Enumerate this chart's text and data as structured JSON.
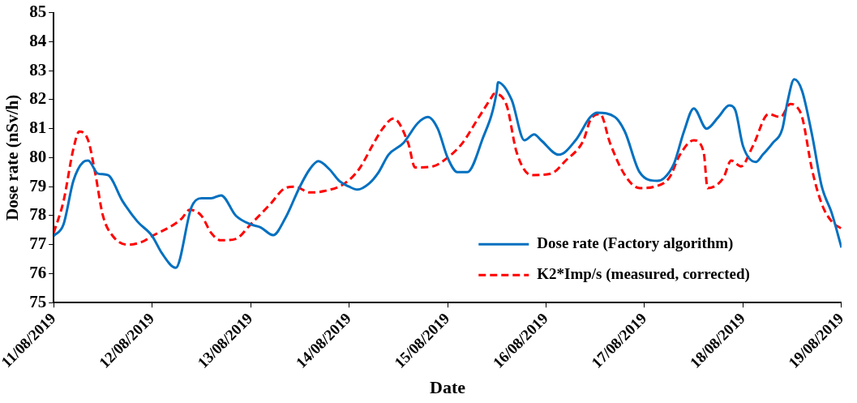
{
  "chart_data": {
    "type": "line",
    "xlabel": "Date",
    "ylabel": "Dose rate (nSv/h)",
    "xlim": [
      "2019-08-11",
      "2019-08-19"
    ],
    "xticks": [
      {
        "value": "2019-08-11",
        "label": "11/08/2019"
      },
      {
        "value": "2019-08-12",
        "label": "12/08/2019"
      },
      {
        "value": "2019-08-13",
        "label": "13/08/2019"
      },
      {
        "value": "2019-08-14",
        "label": "14/08/2019"
      },
      {
        "value": "2019-08-15",
        "label": "15/08/2019"
      },
      {
        "value": "2019-08-16",
        "label": "16/08/2019"
      },
      {
        "value": "2019-08-17",
        "label": "17/08/2019"
      },
      {
        "value": "2019-08-18",
        "label": "18/08/2019"
      },
      {
        "value": "2019-08-19",
        "label": "19/08/2019"
      }
    ],
    "ylim": [
      75,
      85
    ],
    "yticks": [
      75,
      76,
      77,
      78,
      79,
      80,
      81,
      82,
      83,
      84,
      85
    ],
    "grid": false,
    "legend": "bottom right",
    "marker": "none",
    "series": [
      {
        "name": "Dose rate (Factory algorithm)",
        "color": "#0070c0",
        "line_style": "solid",
        "x": [
          "2019-08-11T00:00",
          "2019-08-11T02:24",
          "2019-08-11T04:48",
          "2019-08-11T07:12",
          "2019-08-11T08:24",
          "2019-08-11T10:48",
          "2019-08-11T13:12",
          "2019-08-11T16:48",
          "2019-08-11T20:24",
          "2019-08-12T00:00",
          "2019-08-12T02:24",
          "2019-08-12T05:45",
          "2019-08-12T09:36",
          "2019-08-12T12:00",
          "2019-08-12T14:24",
          "2019-08-12T16:48",
          "2019-08-12T20:24",
          "2019-08-13T00:00",
          "2019-08-13T02:24",
          "2019-08-13T05:30",
          "2019-08-13T08:24",
          "2019-08-13T12:00",
          "2019-08-13T14:24",
          "2019-08-13T16:30",
          "2019-08-13T19:12",
          "2019-08-13T21:36",
          "2019-08-14T00:00",
          "2019-08-14T02:00",
          "2019-08-14T04:48",
          "2019-08-14T07:12",
          "2019-08-14T09:36",
          "2019-08-14T13:12",
          "2019-08-14T16:48",
          "2019-08-14T19:12",
          "2019-08-14T21:36",
          "2019-08-15T00:00",
          "2019-08-15T02:24",
          "2019-08-15T04:48",
          "2019-08-15T08:24",
          "2019-08-15T12:00",
          "2019-08-15T12:15",
          "2019-08-15T15:36",
          "2019-08-15T18:43",
          "2019-08-15T21:07",
          "2019-08-15T22:48",
          "2019-08-16T03:07",
          "2019-08-16T07:12",
          "2019-08-16T10:48",
          "2019-08-16T12:29",
          "2019-08-16T16:48",
          "2019-08-16T19:12",
          "2019-08-16T22:48",
          "2019-08-17T03:07",
          "2019-08-17T04:48",
          "2019-08-17T07:12",
          "2019-08-17T09:36",
          "2019-08-17T12:00",
          "2019-08-17T15:07",
          "2019-08-17T18:00",
          "2019-08-17T20:38",
          "2019-08-17T22:05",
          "2019-08-18T00:00",
          "2019-08-18T03:07",
          "2019-08-18T04:48",
          "2019-08-18T07:12",
          "2019-08-18T09:36",
          "2019-08-18T10:48",
          "2019-08-18T12:29",
          "2019-08-18T14:24",
          "2019-08-18T16:48",
          "2019-08-18T19:12",
          "2019-08-18T21:36",
          "2019-08-19T00:00"
        ],
        "values": [
          77.3,
          77.7,
          79.2,
          79.85,
          79.9,
          79.45,
          79.4,
          78.5,
          77.8,
          77.3,
          76.7,
          76.2,
          78.3,
          78.6,
          78.6,
          78.7,
          78.0,
          77.7,
          77.6,
          77.33,
          77.9,
          79.0,
          79.6,
          79.88,
          79.6,
          79.2,
          79.0,
          78.9,
          79.1,
          79.5,
          80.1,
          80.5,
          81.2,
          81.4,
          81.0,
          80.0,
          79.5,
          79.5,
          80.6,
          82.3,
          82.6,
          82.0,
          80.6,
          80.8,
          80.6,
          80.1,
          80.6,
          81.4,
          81.55,
          81.4,
          80.9,
          79.5,
          79.2,
          79.3,
          79.8,
          80.9,
          81.7,
          81.0,
          81.4,
          81.8,
          81.65,
          80.4,
          79.85,
          80.1,
          80.5,
          81.0,
          81.9,
          82.7,
          82.3,
          80.8,
          79.0,
          78.1,
          76.9
        ]
      },
      {
        "name": "K2*Imp/s (measured, corrected)",
        "color": "#ff0000",
        "line_style": "dashed",
        "x": [
          "2019-08-11T00:00",
          "2019-08-11T02:24",
          "2019-08-11T04:48",
          "2019-08-11T06:14",
          "2019-08-11T08:24",
          "2019-08-11T10:05",
          "2019-08-11T12:00",
          "2019-08-11T14:24",
          "2019-08-11T18:00",
          "2019-08-11T21:36",
          "2019-08-12T00:00",
          "2019-08-12T04:48",
          "2019-08-12T07:12",
          "2019-08-12T09:07",
          "2019-08-12T12:00",
          "2019-08-12T14:24",
          "2019-08-12T16:48",
          "2019-08-12T20:24",
          "2019-08-13T00:00",
          "2019-08-13T04:48",
          "2019-08-13T08:24",
          "2019-08-13T10:48",
          "2019-08-13T14:24",
          "2019-08-13T18:00",
          "2019-08-13T22:48",
          "2019-08-14T02:24",
          "2019-08-14T06:00",
          "2019-08-14T08:10",
          "2019-08-14T10:48",
          "2019-08-14T14:24",
          "2019-08-14T16:05",
          "2019-08-14T20:24",
          "2019-08-15T00:00",
          "2019-08-15T03:36",
          "2019-08-15T07:12",
          "2019-08-15T10:48",
          "2019-08-15T11:17",
          "2019-08-15T14:24",
          "2019-08-15T16:48",
          "2019-08-15T20:24",
          "2019-08-16T01:12",
          "2019-08-16T04:48",
          "2019-08-16T09:07",
          "2019-08-16T10:48",
          "2019-08-16T13:12",
          "2019-08-16T15:36",
          "2019-08-16T19:12",
          "2019-08-16T22:48",
          "2019-08-17T02:24",
          "2019-08-17T06:00",
          "2019-08-17T08:38",
          "2019-08-17T12:00",
          "2019-08-17T14:24",
          "2019-08-17T15:22",
          "2019-08-17T19:12",
          "2019-08-17T21:07",
          "2019-08-17T23:31",
          "2019-08-18T02:24",
          "2019-08-18T06:14",
          "2019-08-18T09:07",
          "2019-08-18T11:31",
          "2019-08-18T12:43",
          "2019-08-18T14:24",
          "2019-08-18T16:48",
          "2019-08-18T19:12",
          "2019-08-18T21:36",
          "2019-08-19T00:00"
        ],
        "values": [
          77.4,
          78.5,
          80.3,
          80.9,
          80.6,
          79.5,
          78.0,
          77.3,
          77.0,
          77.1,
          77.3,
          77.65,
          77.9,
          78.2,
          78.0,
          77.4,
          77.15,
          77.2,
          77.7,
          78.4,
          78.95,
          79.0,
          78.8,
          78.85,
          79.1,
          79.6,
          80.5,
          81.0,
          81.35,
          80.5,
          79.66,
          79.7,
          80.0,
          80.5,
          81.3,
          82.1,
          82.2,
          81.8,
          80.2,
          79.4,
          79.45,
          79.9,
          80.6,
          81.3,
          81.5,
          80.5,
          79.4,
          78.95,
          79.0,
          79.3,
          80.1,
          80.6,
          80.2,
          78.95,
          79.3,
          79.9,
          79.7,
          80.4,
          81.5,
          81.4,
          81.85,
          81.8,
          81.4,
          79.6,
          78.4,
          77.8,
          77.55
        ]
      }
    ]
  }
}
